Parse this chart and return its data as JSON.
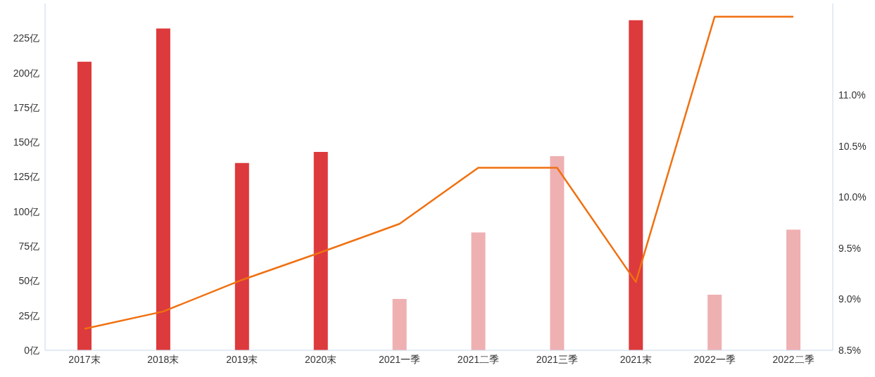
{
  "chart_data": {
    "type": "bar",
    "categories": [
      "2017末",
      "2018末",
      "2019末",
      "2020末",
      "2021一季",
      "2021二季",
      "2021三季",
      "2021末",
      "2022一季",
      "2022二季"
    ],
    "series": [
      {
        "colors": [
          "#dc3a3c",
          "#dc3a3c",
          "#dc3a3c",
          "#dc3a3c",
          "#efb0b2",
          "#efb0b2",
          "#efb0b2",
          "#dc3a3c",
          "#efb0b2",
          "#efb0b2"
        ],
        "values": [
          208,
          232,
          135,
          143,
          37,
          85,
          140,
          238,
          40,
          87
        ]
      },
      {
        "type": "line",
        "axis": "y2",
        "color": "#f07010",
        "marker": "none",
        "values": [
          8.71,
          8.88,
          9.19,
          9.46,
          9.74,
          10.29,
          10.29,
          9.17,
          11.77,
          11.77
        ]
      }
    ],
    "ylim": [
      0,
      250
    ],
    "yticks": [
      {
        "value": 0,
        "label": "0亿"
      },
      {
        "value": 25,
        "label": "25亿"
      },
      {
        "value": 50,
        "label": "50亿"
      },
      {
        "value": 75,
        "label": "75亿"
      },
      {
        "value": 100,
        "label": "100亿"
      },
      {
        "value": 125,
        "label": "125亿"
      },
      {
        "value": 150,
        "label": "150亿"
      },
      {
        "value": 175,
        "label": "175亿"
      },
      {
        "value": 200,
        "label": "200亿"
      },
      {
        "value": 225,
        "label": "225亿"
      }
    ],
    "y2lim": [
      8.5,
      11.9
    ],
    "y2ticks": [
      {
        "value": 8.5,
        "label": "8.5%"
      },
      {
        "value": 9,
        "label": "9.0%"
      },
      {
        "value": 9.5,
        "label": "9.5%"
      },
      {
        "value": 10,
        "label": "10.0%"
      },
      {
        "value": 10.5,
        "label": "10.5%"
      },
      {
        "value": 11,
        "label": "11.0%"
      }
    ],
    "grid": false,
    "legend": false
  }
}
